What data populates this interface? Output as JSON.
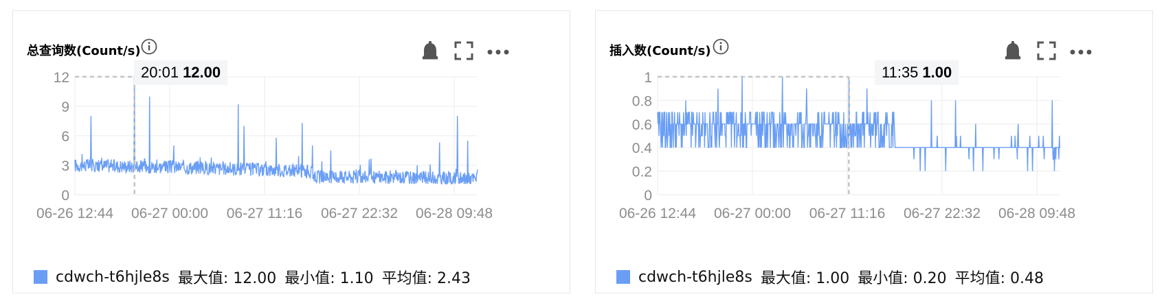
{
  "colors": {
    "series": "#6a9ef5",
    "grid": "#ebebeb",
    "axis_text": "#8c8c8c",
    "crosshair": "#c4c4c4",
    "icon": "#555555"
  },
  "icons": [
    "info-icon",
    "bell-icon",
    "fullscreen-icon",
    "more-icon"
  ],
  "chart_data": [
    {
      "type": "line",
      "title": "总查询数(Count/s)",
      "x_ticks": [
        "06-26 12:44",
        "06-27 00:00",
        "06-27 11:16",
        "06-27 22:32",
        "06-28 09:48"
      ],
      "y_ticks": [
        "0",
        "3",
        "6",
        "9",
        "12"
      ],
      "ylim": [
        0,
        12
      ],
      "grid": true,
      "tooltip": {
        "time": "20:01",
        "value": "12.00"
      },
      "series": [
        {
          "name": "cdwch-t6hjle8s",
          "baseline_profile": [
            {
              "t": 0.0,
              "v": 3.0
            },
            {
              "t": 0.25,
              "v": 2.8
            },
            {
              "t": 0.5,
              "v": 2.5
            },
            {
              "t": 0.58,
              "v": 2.4
            },
            {
              "t": 0.6,
              "v": 1.8
            },
            {
              "t": 0.8,
              "v": 1.8
            },
            {
              "t": 0.95,
              "v": 1.6
            },
            {
              "t": 1.0,
              "v": 1.6
            }
          ],
          "noise": 0.7,
          "floor": 1.1,
          "spikes": [
            {
              "t": 0.04,
              "v": 8.0
            },
            {
              "t": 0.148,
              "v": 12.0
            },
            {
              "t": 0.185,
              "v": 10.0
            },
            {
              "t": 0.245,
              "v": 5.0
            },
            {
              "t": 0.405,
              "v": 9.2
            },
            {
              "t": 0.42,
              "v": 7.0
            },
            {
              "t": 0.5,
              "v": 5.8
            },
            {
              "t": 0.565,
              "v": 7.3
            },
            {
              "t": 0.59,
              "v": 5.0
            },
            {
              "t": 0.635,
              "v": 4.5
            },
            {
              "t": 0.905,
              "v": 5.3
            },
            {
              "t": 0.95,
              "v": 8.0
            },
            {
              "t": 0.975,
              "v": 5.5
            }
          ]
        }
      ],
      "legend": {
        "name": "cdwch-t6hjle8s",
        "max": "最大值: 12.00",
        "min": "最小值: 1.10",
        "avg": "平均值: 2.43"
      }
    },
    {
      "type": "line",
      "title": "插入数(Count/s)",
      "x_ticks": [
        "06-26 12:44",
        "06-27 00:00",
        "06-27 11:16",
        "06-27 22:32",
        "06-28 09:48"
      ],
      "y_ticks": [
        "0",
        "0.2",
        "0.4",
        "0.6",
        "0.8",
        "1"
      ],
      "ylim": [
        0,
        1
      ],
      "grid": true,
      "tooltip": {
        "time": "11:35",
        "value": "1.00"
      },
      "series": [
        {
          "name": "cdwch-t6hjle8s",
          "levels_high": [
            0.4,
            0.5,
            0.6,
            0.6,
            0.7
          ],
          "levels_low": [
            0.3,
            0.4,
            0.4,
            0.4,
            0.5
          ],
          "switch_t": 0.59,
          "spikes": [
            {
              "t": 0.21,
              "v": 1.0
            },
            {
              "t": 0.31,
              "v": 1.0
            },
            {
              "t": 0.475,
              "v": 1.0
            },
            {
              "t": 0.07,
              "v": 0.8
            },
            {
              "t": 0.15,
              "v": 0.9
            },
            {
              "t": 0.37,
              "v": 0.9
            },
            {
              "t": 0.52,
              "v": 0.9
            },
            {
              "t": 0.68,
              "v": 0.8
            },
            {
              "t": 0.79,
              "v": 0.6
            },
            {
              "t": 0.895,
              "v": 0.6
            },
            {
              "t": 0.98,
              "v": 0.8
            },
            {
              "t": 0.74,
              "v": 0.8
            }
          ]
        }
      ],
      "legend": {
        "name": "cdwch-t6hjle8s",
        "max": "最大值: 1.00",
        "min": "最小值: 0.20",
        "avg": "平均值: 0.48"
      }
    }
  ]
}
